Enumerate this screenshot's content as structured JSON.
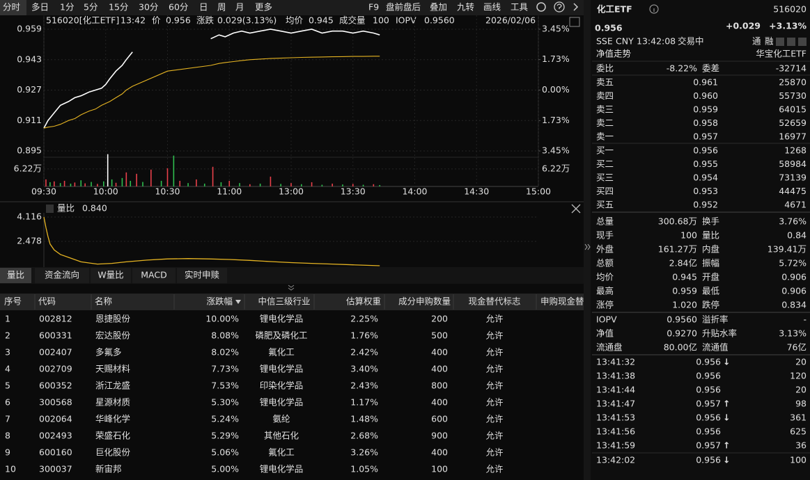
{
  "toolbar": {
    "periods": [
      "分时",
      "多日",
      "1分",
      "5分",
      "15分",
      "30分",
      "60分",
      "日",
      "周",
      "月",
      "更多"
    ],
    "tools": [
      "F9",
      "盘前盘后",
      "叠加",
      "九转",
      "画线",
      "工具"
    ]
  },
  "chart_header": {
    "name": "516020[化工ETF]",
    "time": "13:42",
    "price_label": "价",
    "price": "0.956",
    "change_label": "涨跌",
    "change": "0.029(3.13%)",
    "avg_label": "均价",
    "avg": "0.945",
    "volume_label": "成交量",
    "volume": "100",
    "iopv_label": "IOPV",
    "iopv": "0.9560",
    "date": "2026/02/06"
  },
  "chart_data": [
    {
      "type": "line",
      "x": [
        0,
        2,
        5,
        8,
        10,
        12,
        15,
        18,
        20,
        22,
        25,
        28,
        30,
        32,
        35,
        38,
        40,
        43,
        60,
        81,
        85,
        88,
        92,
        96,
        100,
        105,
        110,
        115,
        120,
        125,
        130,
        135,
        140,
        145,
        150,
        155,
        160,
        163
      ],
      "series": [
        {
          "color": "#ffffff",
          "values": [
            0.907,
            0.911,
            0.915,
            0.919,
            0.92,
            0.921,
            0.923,
            0.924,
            0.925,
            0.926,
            0.927,
            0.928,
            0.93,
            0.933,
            0.937,
            0.94,
            0.943,
            0.947,
            null,
            0.954,
            0.956,
            0.955,
            0.957,
            0.958,
            0.957,
            0.958,
            0.959,
            0.958,
            0.957,
            0.958,
            0.959,
            0.957,
            0.958,
            0.958,
            0.957,
            0.958,
            0.957,
            0.956
          ]
        },
        {
          "color": "#e6b422",
          "values": [
            0.907,
            0.9075,
            0.908,
            0.909,
            0.91,
            0.911,
            0.912,
            0.914,
            0.915,
            0.916,
            0.917,
            0.919,
            0.92,
            0.921,
            0.923,
            0.925,
            0.927,
            0.929,
            0.937,
            0.94,
            0.941,
            0.9415,
            0.942,
            0.9425,
            0.943,
            0.9433,
            0.9436,
            0.9438,
            0.944,
            0.9442,
            0.9443,
            0.9444,
            0.9445,
            0.9446,
            0.9447,
            0.9447,
            0.9448,
            0.9448
          ]
        }
      ],
      "xlim": [
        0,
        240
      ],
      "xticks": [
        {
          "value": 0,
          "label": "09:30"
        },
        {
          "value": 30,
          "label": "10:00"
        },
        {
          "value": 60,
          "label": "10:30"
        },
        {
          "value": 90,
          "label": "11:00"
        },
        {
          "value": 120,
          "label": "13:00"
        },
        {
          "value": 150,
          "label": "13:30"
        },
        {
          "value": 180,
          "label": "14:00"
        },
        {
          "value": 210,
          "label": "14:30"
        },
        {
          "value": 240,
          "label": "15:00"
        }
      ],
      "ylim": [
        0.895,
        0.959
      ],
      "yticks": [
        0.959,
        0.943,
        0.927,
        0.911,
        0.895
      ],
      "y2lim": [
        -3.45,
        3.45
      ],
      "y2ticks": [
        {
          "value": 3.45,
          "label": "3.45%"
        },
        {
          "value": 1.73,
          "label": "1.73%"
        },
        {
          "value": 0,
          "label": "0.00%"
        },
        {
          "value": -1.73,
          "label": "1.73%"
        },
        {
          "value": -3.45,
          "label": "3.45%"
        }
      ],
      "grid": true
    },
    {
      "type": "bar",
      "x": [
        1,
        3,
        5,
        8,
        10,
        13,
        15,
        18,
        20,
        23,
        26,
        29,
        31,
        33,
        35,
        38,
        40,
        42,
        45,
        48,
        52,
        57,
        60,
        63,
        66,
        70,
        74,
        78,
        82,
        86,
        90,
        95,
        100,
        105,
        110,
        115,
        120,
        125,
        130,
        135,
        140,
        145,
        150,
        155,
        160,
        163
      ],
      "values": [
        2.5,
        1.5,
        1.8,
        1.2,
        2.0,
        1.0,
        1.4,
        2.2,
        1.1,
        1.6,
        0.9,
        1.8,
        11.5,
        2.5,
        1.3,
        3.0,
        5.0,
        2.0,
        4.5,
        1.6,
        6.0,
        2.0,
        6.5,
        11.0,
        2.0,
        1.2,
        2.5,
        1.0,
        7.0,
        1.5,
        2.0,
        1.2,
        0.8,
        1.0,
        3.5,
        0.9,
        1.2,
        0.8,
        1.5,
        0.6,
        1.0,
        0.7,
        0.9,
        0.6,
        0.8,
        0.5
      ],
      "colors": [
        "#e8404a",
        "#2ebd4e",
        "#e8404a",
        "#2ebd4e",
        "#e8404a",
        "#2ebd4e",
        "#e8404a",
        "#2ebd4e",
        "#e8404a",
        "#2ebd4e",
        "#e8404a",
        "#2ebd4e",
        "#ffffff",
        "#2ebd4e",
        "#e8404a",
        "#2ebd4e",
        "#e8404a",
        "#2ebd4e",
        "#e8404a",
        "#2ebd4e",
        "#e8404a",
        "#2ebd4e",
        "#e8404a",
        "#2ebd4e",
        "#e8404a",
        "#2ebd4e",
        "#e8404a",
        "#2ebd4e",
        "#e8404a",
        "#2ebd4e",
        "#e8404a",
        "#2ebd4e",
        "#e8404a",
        "#2ebd4e",
        "#e8404a",
        "#2ebd4e",
        "#e8404a",
        "#2ebd4e",
        "#e8404a",
        "#2ebd4e",
        "#e8404a",
        "#2ebd4e",
        "#e8404a",
        "#2ebd4e",
        "#e8404a",
        "#2ebd4e"
      ],
      "xlim": [
        0,
        240
      ],
      "ylim": [
        0,
        12.4
      ],
      "yticks": [
        {
          "value": 6.22,
          "label": "6.22万"
        }
      ]
    },
    {
      "type": "line",
      "title": "量比",
      "current": "0.840",
      "x": [
        0,
        1,
        2,
        3,
        5,
        8,
        12,
        18,
        26,
        33,
        40,
        50,
        60,
        70,
        80,
        90,
        100,
        110,
        120,
        130,
        140,
        150,
        163
      ],
      "series": [
        {
          "color": "#e6b422",
          "values": [
            4.116,
            3.4,
            2.8,
            2.3,
            1.9,
            1.6,
            1.4,
            1.1,
            0.95,
            1.0,
            1.1,
            1.22,
            1.3,
            1.32,
            1.3,
            1.26,
            1.2,
            1.12,
            1.05,
            1.0,
            0.95,
            0.9,
            0.84
          ]
        }
      ],
      "xlim": [
        0,
        240
      ],
      "ylim": [
        0.793,
        4.116
      ],
      "yticks": [
        4.116,
        2.478
      ]
    }
  ],
  "tabs": [
    "量比",
    "资金流向",
    "W量比",
    "MACD",
    "实时申赎"
  ],
  "table": {
    "headers": [
      "序号",
      "代码",
      "名称",
      "涨跌幅",
      "中信三级行业",
      "估算权重",
      "成分申购数量",
      "现金替代标志",
      "申购现金替"
    ],
    "rows": [
      [
        "1",
        "002812",
        "恩捷股份",
        "10.00%",
        "锂电化学品",
        "2.25%",
        "200",
        "允许"
      ],
      [
        "2",
        "600331",
        "宏达股份",
        "8.08%",
        "磷肥及磷化工",
        "1.76%",
        "500",
        "允许"
      ],
      [
        "3",
        "002407",
        "多氟多",
        "8.02%",
        "氟化工",
        "2.42%",
        "400",
        "允许"
      ],
      [
        "4",
        "002709",
        "天赐材料",
        "7.73%",
        "锂电化学品",
        "3.40%",
        "400",
        "允许"
      ],
      [
        "5",
        "600352",
        "浙江龙盛",
        "7.53%",
        "印染化学品",
        "2.43%",
        "800",
        "允许"
      ],
      [
        "6",
        "300568",
        "星源材质",
        "5.30%",
        "锂电化学品",
        "1.17%",
        "400",
        "允许"
      ],
      [
        "7",
        "002064",
        "华峰化学",
        "5.24%",
        "氨纶",
        "1.48%",
        "600",
        "允许"
      ],
      [
        "8",
        "002493",
        "荣盛石化",
        "5.29%",
        "其他石化",
        "2.68%",
        "900",
        "允许"
      ],
      [
        "9",
        "600160",
        "巨化股份",
        "5.06%",
        "氟化工",
        "3.26%",
        "400",
        "允许"
      ],
      [
        "10",
        "300037",
        "新宙邦",
        "5.00%",
        "锂电化学品",
        "1.05%",
        "100",
        "允许"
      ]
    ]
  },
  "quote": {
    "name": "化工ETF",
    "code": "516020",
    "price": "0.956",
    "change": "+0.029",
    "change_pct": "+3.13%",
    "exchange": "SSE",
    "currency": "CNY",
    "time": "13:42:08",
    "status": "交易中",
    "tags": [
      "通",
      "融"
    ]
  },
  "nav": {
    "label": "净值走势",
    "fund": "华宝化工ETF"
  },
  "order_ratio": [
    "委比",
    "-8.22%",
    "委差",
    "-32714"
  ],
  "asks": [
    [
      "卖五",
      "0.961",
      "25870"
    ],
    [
      "卖四",
      "0.960",
      "55730"
    ],
    [
      "卖三",
      "0.959",
      "64015"
    ],
    [
      "卖二",
      "0.958",
      "52659"
    ],
    [
      "卖一",
      "0.957",
      "16977"
    ]
  ],
  "bids": [
    [
      "买一",
      "0.956",
      "1268"
    ],
    [
      "买二",
      "0.955",
      "58984"
    ],
    [
      "买三",
      "0.954",
      "73139"
    ],
    [
      "买四",
      "0.953",
      "44475"
    ],
    [
      "买五",
      "0.952",
      "4671"
    ]
  ],
  "stats": [
    [
      "总量",
      "300.68万",
      "换手",
      "3.76%"
    ],
    [
      "现手",
      "100",
      "量比",
      "0.84"
    ],
    [
      "外盘",
      "161.27万",
      "内盘",
      "139.41万"
    ],
    [
      "总额",
      "2.84亿",
      "振幅",
      "5.72%"
    ],
    [
      "均价",
      "0.945",
      "开盘",
      "0.906"
    ],
    [
      "最高",
      "0.959",
      "最低",
      "0.906"
    ],
    [
      "涨停",
      "1.020",
      "跌停",
      "0.834"
    ]
  ],
  "iopv": [
    [
      "IOPV",
      "0.9560",
      "溢折率",
      "-"
    ],
    [
      "净值",
      "0.9270",
      "升贴水率",
      "3.13%"
    ],
    [
      "流通盘",
      "80.00亿",
      "流通值",
      "76亿"
    ]
  ],
  "trades": [
    [
      "13:41:32",
      "0.956",
      "↓",
      "20"
    ],
    [
      "13:41:38",
      "0.956",
      null,
      "120"
    ],
    [
      "13:41:44",
      "0.956",
      null,
      "20"
    ],
    [
      "13:41:47",
      "0.957",
      "↑",
      "98"
    ],
    [
      "13:41:53",
      "0.956",
      "↓",
      "361"
    ],
    [
      "13:41:56",
      "0.956",
      null,
      "625"
    ],
    [
      "13:41:59",
      "0.957",
      "↑",
      "36"
    ],
    [
      "13:42:02",
      "0.956",
      "↓",
      "100"
    ]
  ]
}
